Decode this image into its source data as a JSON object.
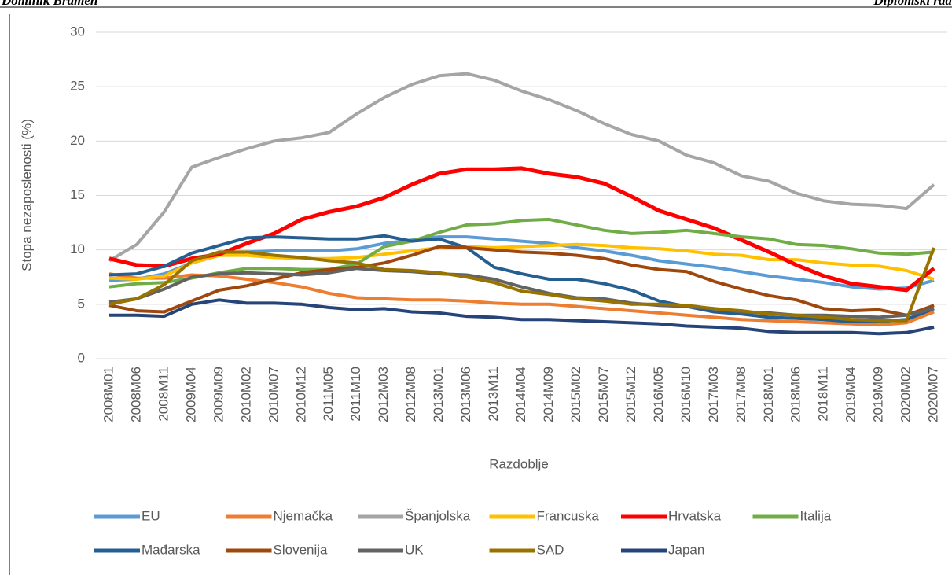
{
  "header": {
    "left": "Dominik Bramen",
    "right": "Diplomski rad"
  },
  "chart_data": {
    "type": "line",
    "ylabel": "Stopa nezaposlenosti (%)",
    "xlabel": "Razdoblje",
    "categories": [
      "2008M01",
      "2008M06",
      "2008M11",
      "2009M04",
      "2009M09",
      "2010M02",
      "2010M07",
      "2010M12",
      "2011M05",
      "2011M10",
      "2012M03",
      "2012M08",
      "2013M01",
      "2013M06",
      "2013M11",
      "2014M04",
      "2014M09",
      "2015M02",
      "2015M07",
      "2015M12",
      "2016M05",
      "2016M10",
      "2017M03",
      "2017M08",
      "2018M01",
      "2018M06",
      "2018M11",
      "2019M04",
      "2019M09",
      "2020M02",
      "2020M07"
    ],
    "ylim": [
      0,
      30
    ],
    "yticks": [
      0,
      5,
      10,
      15,
      20,
      25,
      30
    ],
    "grid": true,
    "legend": "bottom",
    "series": [
      {
        "name": "EU",
        "color": "#5b9bd5",
        "values": [
          7.2,
          7.3,
          7.8,
          8.8,
          9.5,
          9.8,
          9.9,
          9.9,
          9.9,
          10.1,
          10.6,
          10.9,
          11.2,
          11.2,
          11.0,
          10.8,
          10.6,
          10.2,
          9.9,
          9.5,
          9.0,
          8.7,
          8.4,
          8.0,
          7.6,
          7.3,
          7.0,
          6.6,
          6.4,
          6.5,
          7.2
        ]
      },
      {
        "name": "Njemačka",
        "color": "#ed7d31",
        "values": [
          7.8,
          7.4,
          7.4,
          7.7,
          7.6,
          7.3,
          7.0,
          6.6,
          6.0,
          5.6,
          5.5,
          5.4,
          5.4,
          5.3,
          5.1,
          5.0,
          5.0,
          4.8,
          4.6,
          4.4,
          4.2,
          4.0,
          3.8,
          3.6,
          3.5,
          3.4,
          3.3,
          3.2,
          3.1,
          3.3,
          4.3
        ]
      },
      {
        "name": "Španjolska",
        "color": "#a5a5a5",
        "values": [
          9.0,
          10.5,
          13.5,
          17.6,
          18.5,
          19.3,
          20.0,
          20.3,
          20.8,
          22.5,
          24.0,
          25.2,
          26.0,
          26.2,
          25.6,
          24.6,
          23.8,
          22.8,
          21.6,
          20.6,
          20.0,
          18.7,
          18.0,
          16.8,
          16.3,
          15.2,
          14.5,
          14.2,
          14.1,
          13.8,
          16.0
        ]
      },
      {
        "name": "Francuska",
        "color": "#ffc000",
        "values": [
          7.4,
          7.3,
          7.6,
          8.8,
          9.5,
          9.5,
          9.3,
          9.2,
          9.2,
          9.3,
          9.6,
          9.9,
          10.2,
          10.3,
          10.2,
          10.3,
          10.4,
          10.5,
          10.4,
          10.2,
          10.1,
          9.9,
          9.6,
          9.5,
          9.1,
          9.1,
          8.8,
          8.6,
          8.5,
          8.1,
          7.3
        ]
      },
      {
        "name": "Hrvatska",
        "color": "#ff0000",
        "values": [
          9.2,
          8.6,
          8.5,
          9.2,
          9.6,
          10.6,
          11.5,
          12.8,
          13.5,
          14.0,
          14.8,
          16.0,
          17.0,
          17.4,
          17.4,
          17.5,
          17.0,
          16.7,
          16.1,
          14.9,
          13.6,
          12.8,
          12.0,
          10.9,
          9.8,
          8.6,
          7.6,
          6.9,
          6.6,
          6.3,
          8.3
        ]
      },
      {
        "name": "Italija",
        "color": "#70ad47",
        "values": [
          6.6,
          6.9,
          7.0,
          7.4,
          7.9,
          8.3,
          8.3,
          8.2,
          8.2,
          8.7,
          10.3,
          10.8,
          11.6,
          12.3,
          12.4,
          12.7,
          12.8,
          12.3,
          11.8,
          11.5,
          11.6,
          11.8,
          11.5,
          11.2,
          11.0,
          10.5,
          10.4,
          10.1,
          9.7,
          9.6,
          9.8
        ]
      },
      {
        "name": "Mađarska",
        "color": "#255e91",
        "values": [
          7.7,
          7.8,
          8.5,
          9.7,
          10.4,
          11.1,
          11.2,
          11.1,
          11.0,
          11.0,
          11.3,
          10.8,
          11.0,
          10.2,
          8.4,
          7.8,
          7.3,
          7.3,
          6.9,
          6.3,
          5.3,
          4.8,
          4.3,
          4.1,
          3.8,
          3.7,
          3.6,
          3.4,
          3.4,
          3.6,
          4.6
        ]
      },
      {
        "name": "Slovenija",
        "color": "#9e480e",
        "values": [
          4.9,
          4.4,
          4.3,
          5.3,
          6.3,
          6.7,
          7.3,
          7.9,
          8.2,
          8.4,
          8.8,
          9.5,
          10.3,
          10.2,
          10.0,
          9.8,
          9.7,
          9.5,
          9.2,
          8.6,
          8.2,
          8.0,
          7.1,
          6.4,
          5.8,
          5.4,
          4.6,
          4.4,
          4.5,
          4.0,
          4.9
        ]
      },
      {
        "name": "UK",
        "color": "#636363",
        "values": [
          5.2,
          5.5,
          6.4,
          7.5,
          7.8,
          7.9,
          7.8,
          7.7,
          7.9,
          8.3,
          8.1,
          8.0,
          7.8,
          7.7,
          7.3,
          6.6,
          6.0,
          5.6,
          5.5,
          5.1,
          4.9,
          4.8,
          4.6,
          4.3,
          4.2,
          4.0,
          4.0,
          3.9,
          3.8,
          4.0,
          4.6
        ]
      },
      {
        "name": "SAD",
        "color": "#997300",
        "values": [
          5.0,
          5.5,
          6.8,
          9.0,
          9.8,
          9.8,
          9.5,
          9.3,
          9.0,
          8.8,
          8.2,
          8.1,
          7.9,
          7.5,
          7.0,
          6.2,
          5.9,
          5.5,
          5.3,
          5.0,
          5.0,
          4.9,
          4.6,
          4.4,
          4.1,
          4.0,
          3.8,
          3.6,
          3.5,
          3.5,
          10.2
        ]
      },
      {
        "name": "Japan",
        "color": "#264478",
        "values": [
          4.0,
          4.0,
          3.9,
          5.0,
          5.4,
          5.1,
          5.1,
          5.0,
          4.7,
          4.5,
          4.6,
          4.3,
          4.2,
          3.9,
          3.8,
          3.6,
          3.6,
          3.5,
          3.4,
          3.3,
          3.2,
          3.0,
          2.9,
          2.8,
          2.5,
          2.4,
          2.4,
          2.4,
          2.3,
          2.4,
          2.9
        ]
      }
    ]
  }
}
